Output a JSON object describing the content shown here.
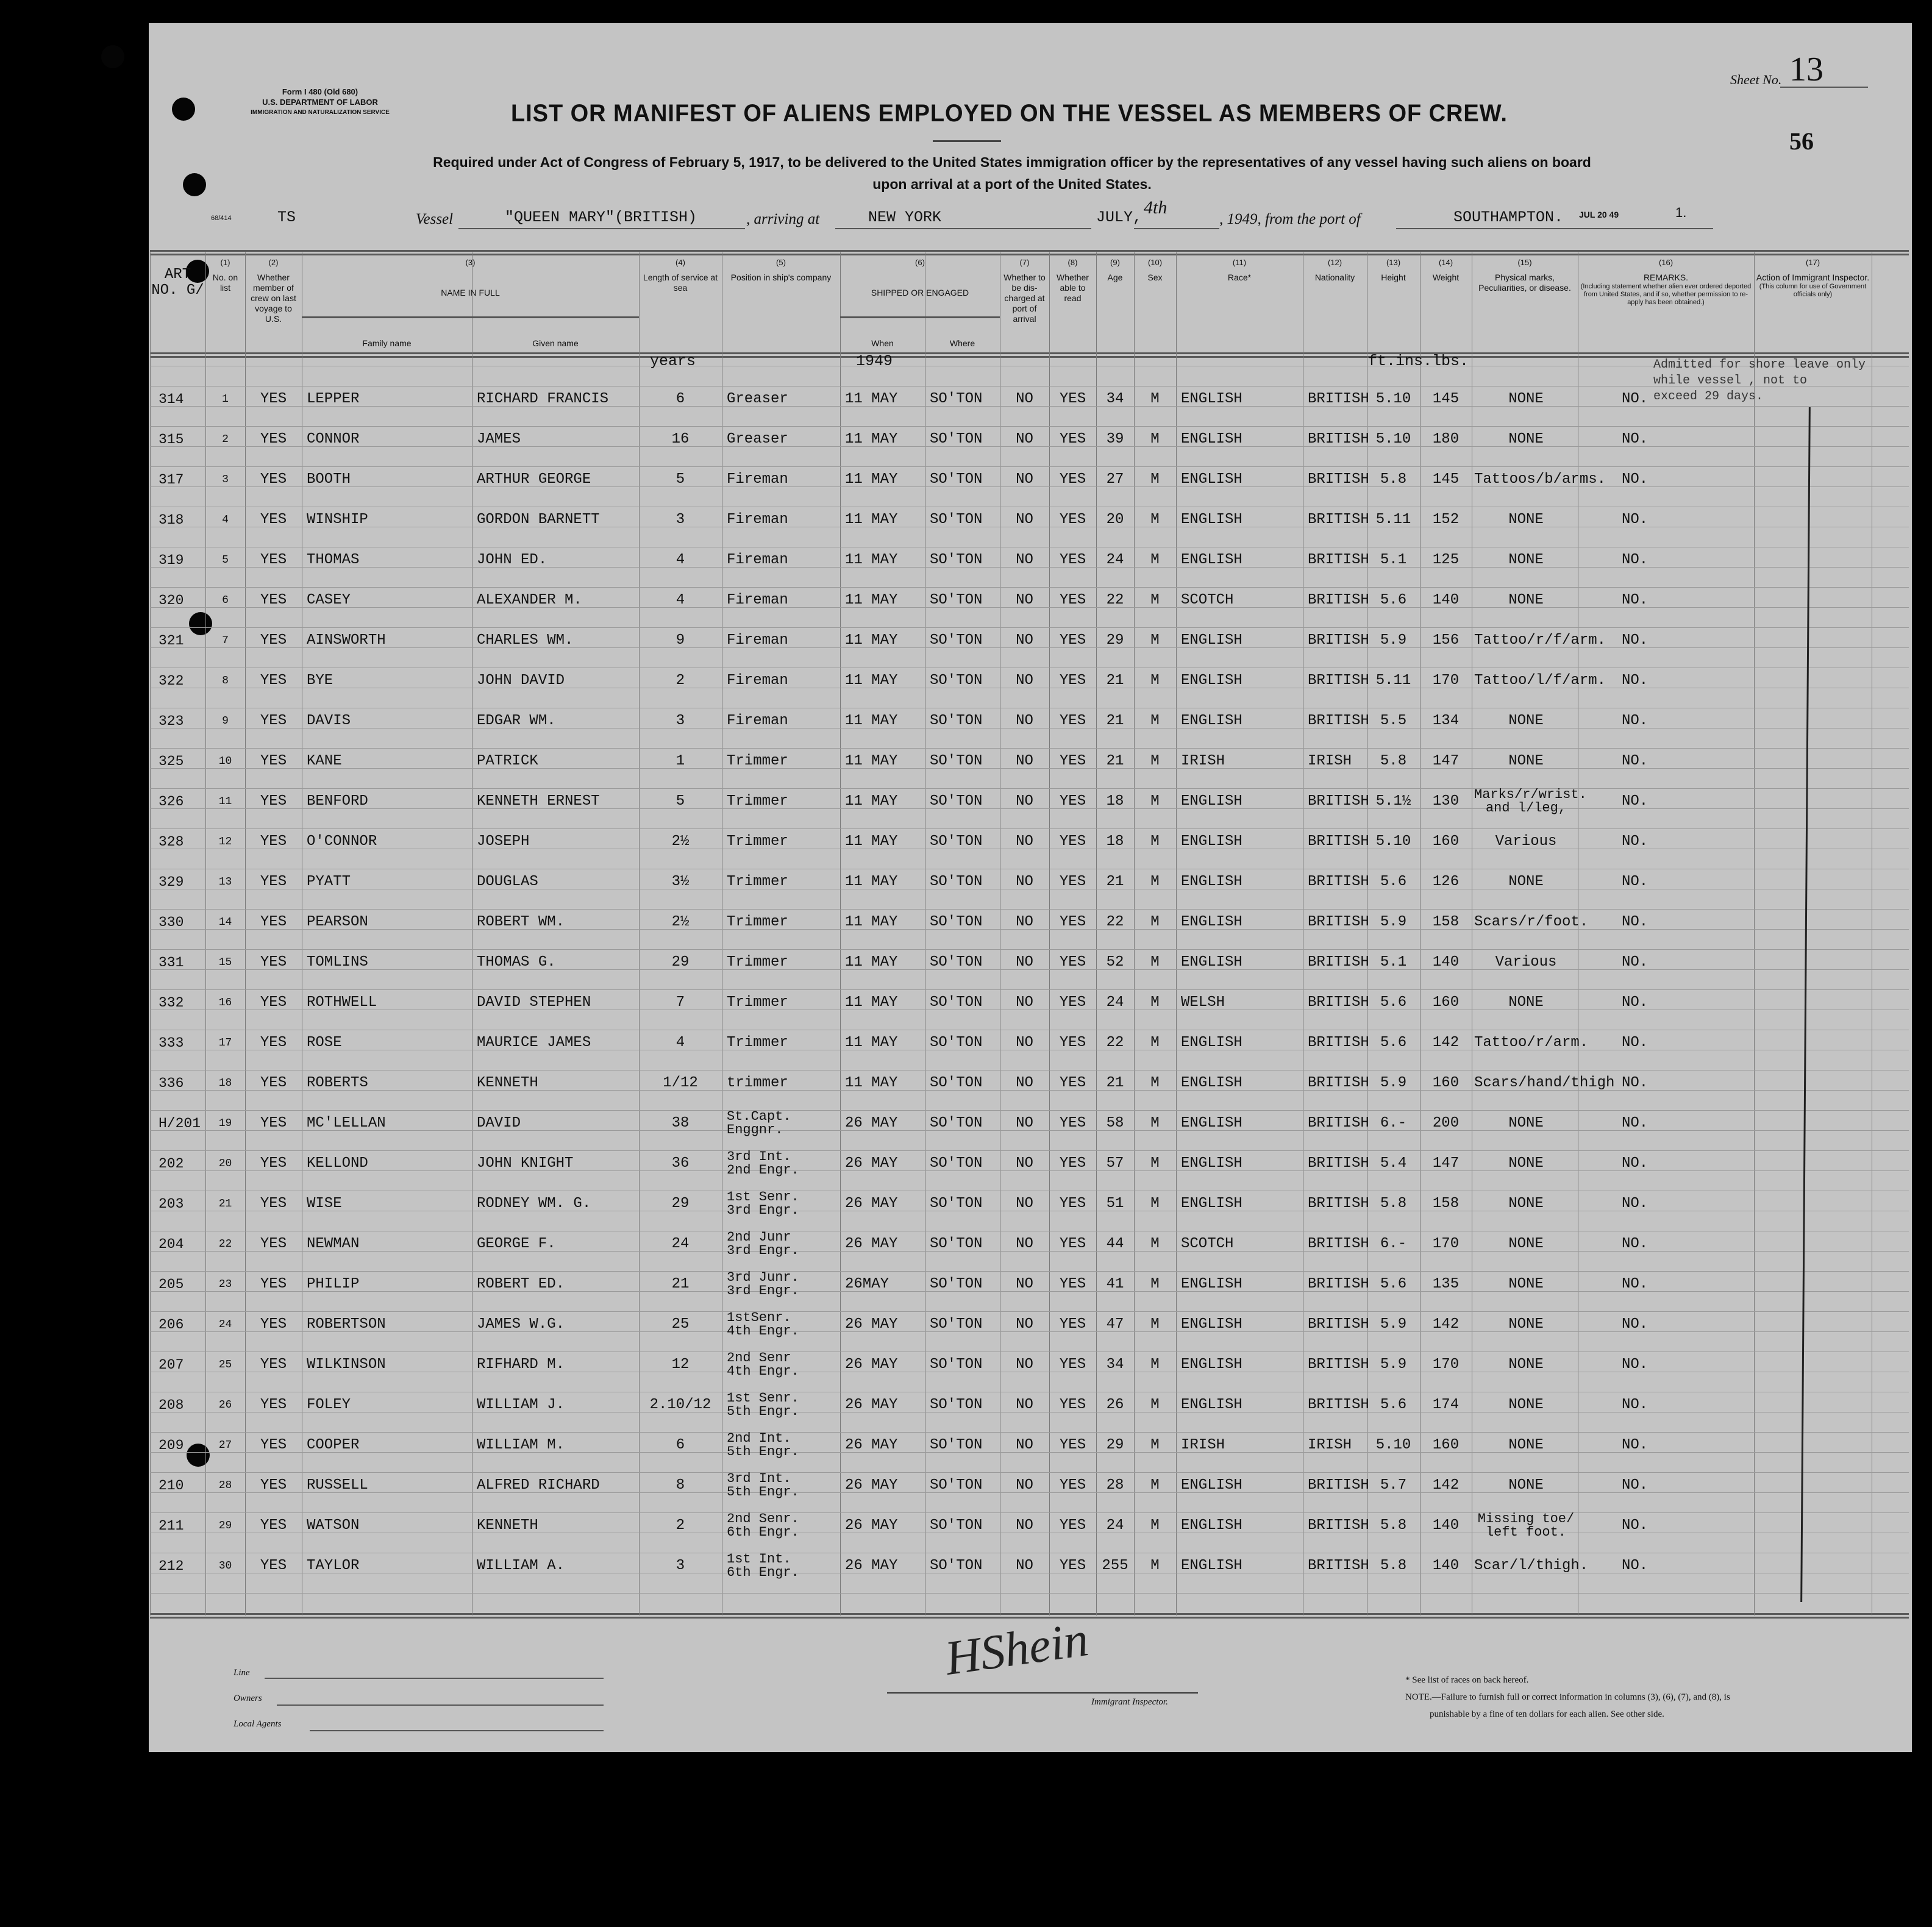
{
  "form": {
    "form_no": "Form I 480 (Old 680)",
    "department": "U.S. DEPARTMENT OF LABOR",
    "service": "IMMIGRATION AND NATURALIZATION SERVICE",
    "sheet_label": "Sheet No.",
    "sheet_no": "13",
    "page_no": "56",
    "title": "LIST OR MANIFEST OF ALIENS EMPLOYED ON THE VESSEL AS MEMBERS OF CREW.",
    "subtitle_1": "Required under Act of Congress of February 5, 1917, to be delivered to the United States immigration officer by the representatives of any vessel having such aliens on board",
    "subtitle_2": "upon arrival at a port of the United States.",
    "ref": "68/414",
    "prefix": "TS",
    "vessel_label": "Vessel",
    "vessel": "\"QUEEN MARY\"(BRITISH)",
    "arriving_label": ", arriving at",
    "arriving": "NEW YORK",
    "month": "JULY,",
    "day": "4th",
    "year": ", 1949, from the port of",
    "port": "SOUTHAMPTON.",
    "stamp": "JUL 20 49",
    "stamp_2": "1."
  },
  "headers": {
    "art": "ART NO. G/",
    "c1": {
      "num": "(1)",
      "label": "No. on list"
    },
    "c2": {
      "num": "(2)",
      "label": "Whether member of crew on last voyage to U.S."
    },
    "c3": {
      "num": "(3)",
      "label": "NAME IN FULL",
      "family": "Family name",
      "given": "Given name"
    },
    "c4": {
      "num": "(4)",
      "label": "Length of service at sea"
    },
    "c5": {
      "num": "(5)",
      "label": "Position in ship's company"
    },
    "c6": {
      "num": "(6)",
      "label": "SHIPPED OR ENGAGED",
      "when": "When",
      "where": "Where"
    },
    "c7": {
      "num": "(7)",
      "label": "Whether to be dis-charged at port of arrival"
    },
    "c8": {
      "num": "(8)",
      "label": "Whether able to read"
    },
    "c9": {
      "num": "(9)",
      "label": "Age"
    },
    "c10": {
      "num": "(10)",
      "label": "Sex"
    },
    "c11": {
      "num": "(11)",
      "label": "Race*"
    },
    "c12": {
      "num": "(12)",
      "label": "Nationality"
    },
    "c13": {
      "num": "(13)",
      "label": "Height"
    },
    "c14": {
      "num": "(14)",
      "label": "Weight"
    },
    "c15": {
      "num": "(15)",
      "label": "Physical marks, Peculiarities, or disease."
    },
    "c16": {
      "num": "(16)",
      "label": "REMARKS.",
      "note": "(Including statement whether alien ever ordered deported from United States, and if so, whether permission to re-apply has been obtained.)"
    },
    "c17": {
      "num": "(17)",
      "label": "Action of Immigrant Inspector.",
      "note": "(This column for use of Government officials only)"
    }
  },
  "units": {
    "years": "years",
    "year": "1949",
    "measures": "ft.ins.lbs."
  },
  "stamp_remark": [
    "Admitted for shore leave only",
    "while vessel , not to",
    "exceed 29 days."
  ],
  "rows": [
    [
      "314",
      "1",
      "YES",
      "LEPPER",
      "RICHARD FRANCIS",
      "6",
      "Greaser",
      "11 MAY",
      "SO'TON",
      "NO",
      "YES",
      "34",
      "M",
      "ENGLISH",
      "BRITISH",
      "5.10",
      "145",
      "NONE",
      "NO."
    ],
    [
      "315",
      "2",
      "YES",
      "CONNOR",
      "JAMES",
      "16",
      "Greaser",
      "11 MAY",
      "SO'TON",
      "NO",
      "YES",
      "39",
      "M",
      "ENGLISH",
      "BRITISH",
      "5.10",
      "180",
      "NONE",
      "NO."
    ],
    [
      "317",
      "3",
      "YES",
      "BOOTH",
      "ARTHUR GEORGE",
      "5",
      "Fireman",
      "11 MAY",
      "SO'TON",
      "NO",
      "YES",
      "27",
      "M",
      "ENGLISH",
      "BRITISH",
      "5.8",
      "145",
      "Tattoos/b/arms.",
      "NO."
    ],
    [
      "318",
      "4",
      "YES",
      "WINSHIP",
      "GORDON BARNETT",
      "3",
      "Fireman",
      "11 MAY",
      "SO'TON",
      "NO",
      "YES",
      "20",
      "M",
      "ENGLISH",
      "BRITISH",
      "5.11",
      "152",
      "NONE",
      "NO."
    ],
    [
      "319",
      "5",
      "YES",
      "THOMAS",
      "JOHN ED.",
      "4",
      "Fireman",
      "11 MAY",
      "SO'TON",
      "NO",
      "YES",
      "24",
      "M",
      "ENGLISH",
      "BRITISH",
      "5.1",
      "125",
      "NONE",
      "NO."
    ],
    [
      "320",
      "6",
      "YES",
      "CASEY",
      "ALEXANDER M.",
      "4",
      "Fireman",
      "11 MAY",
      "SO'TON",
      "NO",
      "YES",
      "22",
      "M",
      "SCOTCH",
      "BRITISH",
      "5.6",
      "140",
      "NONE",
      "NO."
    ],
    [
      "321",
      "7",
      "YES",
      "AINSWORTH",
      "CHARLES WM.",
      "9",
      "Fireman",
      "11 MAY",
      "SO'TON",
      "NO",
      "YES",
      "29",
      "M",
      "ENGLISH",
      "BRITISH",
      "5.9",
      "156",
      "Tattoo/r/f/arm.",
      "NO."
    ],
    [
      "322",
      "8",
      "YES",
      "BYE",
      "JOHN DAVID",
      "2",
      "Fireman",
      "11 MAY",
      "SO'TON",
      "NO",
      "YES",
      "21",
      "M",
      "ENGLISH",
      "BRITISH",
      "5.11",
      "170",
      "Tattoo/l/f/arm.",
      "NO."
    ],
    [
      "323",
      "9",
      "YES",
      "DAVIS",
      "EDGAR WM.",
      "3",
      "Fireman",
      "11 MAY",
      "SO'TON",
      "NO",
      "YES",
      "21",
      "M",
      "ENGLISH",
      "BRITISH",
      "5.5",
      "134",
      "NONE",
      "NO."
    ],
    [
      "325",
      "10",
      "YES",
      "KANE",
      "PATRICK",
      "1",
      "Trimmer",
      "11 MAY",
      "SO'TON",
      "NO",
      "YES",
      "21",
      "M",
      "IRISH",
      "IRISH",
      "5.8",
      "147",
      "NONE",
      "NO."
    ],
    [
      "326",
      "11",
      "YES",
      "BENFORD",
      "KENNETH ERNEST",
      "5",
      "Trimmer",
      "11 MAY",
      "SO'TON",
      "NO",
      "YES",
      "18",
      "M",
      "ENGLISH",
      "BRITISH",
      "5.1½",
      "130",
      "Marks/r/wrist.\nand l/leg,",
      "NO."
    ],
    [
      "328",
      "12",
      "YES",
      "O'CONNOR",
      "JOSEPH",
      "2½",
      "Trimmer",
      "11 MAY",
      "SO'TON",
      "NO",
      "YES",
      "18",
      "M",
      "ENGLISH",
      "BRITISH",
      "5.10",
      "160",
      "Various",
      "NO."
    ],
    [
      "329",
      "13",
      "YES",
      "PYATT",
      "DOUGLAS",
      "3½",
      "Trimmer",
      "11 MAY",
      "SO'TON",
      "NO",
      "YES",
      "21",
      "M",
      "ENGLISH",
      "BRITISH",
      "5.6",
      "126",
      "NONE",
      "NO."
    ],
    [
      "330",
      "14",
      "YES",
      "PEARSON",
      "ROBERT WM.",
      "2½",
      "Trimmer",
      "11 MAY",
      "SO'TON",
      "NO",
      "YES",
      "22",
      "M",
      "ENGLISH",
      "BRITISH",
      "5.9",
      "158",
      "Scars/r/foot.",
      "NO."
    ],
    [
      "331",
      "15",
      "YES",
      "TOMLINS",
      "THOMAS G.",
      "29",
      "Trimmer",
      "11 MAY",
      "SO'TON",
      "NO",
      "YES",
      "52",
      "M",
      "ENGLISH",
      "BRITISH",
      "5.1",
      "140",
      "Various",
      "NO."
    ],
    [
      "332",
      "16",
      "YES",
      "ROTHWELL",
      "DAVID STEPHEN",
      "7",
      "Trimmer",
      "11 MAY",
      "SO'TON",
      "NO",
      "YES",
      "24",
      "M",
      "WELSH",
      "BRITISH",
      "5.6",
      "160",
      "NONE",
      "NO."
    ],
    [
      "333",
      "17",
      "YES",
      "ROSE",
      "MAURICE JAMES",
      "4",
      "Trimmer",
      "11 MAY",
      "SO'TON",
      "NO",
      "YES",
      "22",
      "M",
      "ENGLISH",
      "BRITISH",
      "5.6",
      "142",
      "Tattoo/r/arm.",
      "NO."
    ],
    [
      "336",
      "18",
      "YES",
      "ROBERTS",
      "KENNETH",
      "1/12",
      "trimmer",
      "11 MAY",
      "SO'TON",
      "NO",
      "YES",
      "21",
      "M",
      "ENGLISH",
      "BRITISH",
      "5.9",
      "160",
      "Scars/hand/thigh",
      "NO."
    ],
    [
      "H/201",
      "19",
      "YES",
      "MC'LELLAN",
      "DAVID",
      "38",
      "St.Capt.\nEnggnr.",
      "26 MAY",
      "SO'TON",
      "NO",
      "YES",
      "58",
      "M",
      "ENGLISH",
      "BRITISH",
      "6.-",
      "200",
      "NONE",
      "NO."
    ],
    [
      "202",
      "20",
      "YES",
      "KELLOND",
      "JOHN KNIGHT",
      "36",
      "3rd Int.\n2nd Engr.",
      "26 MAY",
      "SO'TON",
      "NO",
      "YES",
      "57",
      "M",
      "ENGLISH",
      "BRITISH",
      "5.4",
      "147",
      "NONE",
      "NO."
    ],
    [
      "203",
      "21",
      "YES",
      "WISE",
      "RODNEY WM. G.",
      "29",
      "1st Senr.\n3rd Engr.",
      "26 MAY",
      "SO'TON",
      "NO",
      "YES",
      "51",
      "M",
      "ENGLISH",
      "BRITISH",
      "5.8",
      "158",
      "NONE",
      "NO."
    ],
    [
      "204",
      "22",
      "YES",
      "NEWMAN",
      "GEORGE F.",
      "24",
      "2nd Junr\n3rd Engr.",
      "26 MAY",
      "SO'TON",
      "NO",
      "YES",
      "44",
      "M",
      "SCOTCH",
      "BRITISH",
      "6.-",
      "170",
      "NONE",
      "NO."
    ],
    [
      "205",
      "23",
      "YES",
      "PHILIP",
      "ROBERT ED.",
      "21",
      "3rd Junr.\n3rd Engr.",
      "26MAY",
      "SO'TON",
      "NO",
      "YES",
      "41",
      "M",
      "ENGLISH",
      "BRITISH",
      "5.6",
      "135",
      "NONE",
      "NO."
    ],
    [
      "206",
      "24",
      "YES",
      "ROBERTSON",
      "JAMES W.G.",
      "25",
      "1stSenr.\n4th Engr.",
      "26 MAY",
      "SO'TON",
      "NO",
      "YES",
      "47",
      "M",
      "ENGLISH",
      "BRITISH",
      "5.9",
      "142",
      "NONE",
      "NO."
    ],
    [
      "207",
      "25",
      "YES",
      "WILKINSON",
      "RIFHARD M.",
      "12",
      "2nd Senr\n4th Engr.",
      "26 MAY",
      "SO'TON",
      "NO",
      "YES",
      "34",
      "M",
      "ENGLISH",
      "BRITISH",
      "5.9",
      "170",
      "NONE",
      "NO."
    ],
    [
      "208",
      "26",
      "YES",
      "FOLEY",
      "WILLIAM J.",
      "2.10/12",
      "1st Senr.\n5th Engr.",
      "26 MAY",
      "SO'TON",
      "NO",
      "YES",
      "26",
      "M",
      "ENGLISH",
      "BRITISH",
      "5.6",
      "174",
      "NONE",
      "NO."
    ],
    [
      "209",
      "27",
      "YES",
      "COOPER",
      "WILLIAM M.",
      "6",
      "2nd Int.\n5th Engr.",
      "26 MAY",
      "SO'TON",
      "NO",
      "YES",
      "29",
      "M",
      "IRISH",
      "IRISH",
      "5.10",
      "160",
      "NONE",
      "NO."
    ],
    [
      "210",
      "28",
      "YES",
      "RUSSELL",
      "ALFRED RICHARD",
      "8",
      "3rd Int.\n5th Engr.",
      "26 MAY",
      "SO'TON",
      "NO",
      "YES",
      "28",
      "M",
      "ENGLISH",
      "BRITISH",
      "5.7",
      "142",
      "NONE",
      "NO."
    ],
    [
      "211",
      "29",
      "YES",
      "WATSON",
      "KENNETH",
      "2",
      "2nd Senr.\n6th Engr.",
      "26 MAY",
      "SO'TON",
      "NO",
      "YES",
      "24",
      "M",
      "ENGLISH",
      "BRITISH",
      "5.8",
      "140",
      "Missing toe/\nleft foot.",
      "NO."
    ],
    [
      "212",
      "30",
      "YES",
      "TAYLOR",
      "WILLIAM A.",
      "3",
      "1st Int.\n6th Engr.",
      "26 MAY",
      "SO'TON",
      "NO",
      "YES",
      "255",
      "M",
      "ENGLISH",
      "BRITISH",
      "5.8",
      "140",
      "Scar/l/thigh.",
      "NO."
    ]
  ],
  "footer": {
    "line": "Line",
    "owners": "Owners",
    "agents": "Local Agents",
    "signature": "HShein",
    "inspector": "Immigrant Inspector.",
    "races_note": "* See list of races on back hereof.",
    "note_1": "NOTE.—Failure to furnish full or correct information in columns (3), (6), (7), and (8), is",
    "note_2": "punishable by a fine of ten dollars for each alien.  See other side."
  }
}
